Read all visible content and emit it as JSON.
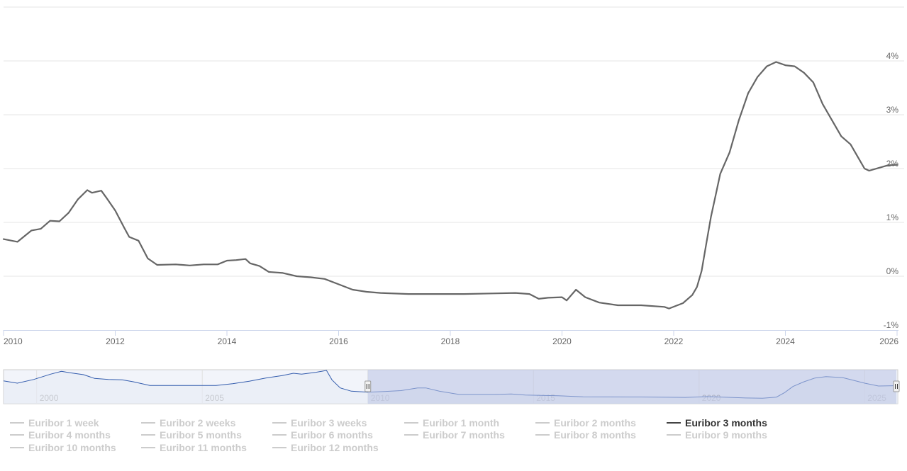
{
  "chart_data": {
    "type": "line",
    "series": [
      {
        "name": "Euribor 3 months",
        "color": "#666666",
        "points": [
          [
            "2010-01",
            0.69
          ],
          [
            "2010-04",
            0.64
          ],
          [
            "2010-07",
            0.85
          ],
          [
            "2010-09",
            0.88
          ],
          [
            "2010-11",
            1.03
          ],
          [
            "2011-01",
            1.02
          ],
          [
            "2011-03",
            1.18
          ],
          [
            "2011-05",
            1.43
          ],
          [
            "2011-07",
            1.6
          ],
          [
            "2011-08",
            1.55
          ],
          [
            "2011-10",
            1.59
          ],
          [
            "2011-11",
            1.47
          ],
          [
            "2012-01",
            1.22
          ],
          [
            "2012-03",
            0.89
          ],
          [
            "2012-04",
            0.73
          ],
          [
            "2012-06",
            0.66
          ],
          [
            "2012-08",
            0.33
          ],
          [
            "2012-10",
            0.21
          ],
          [
            "2013-02",
            0.22
          ],
          [
            "2013-05",
            0.2
          ],
          [
            "2013-08",
            0.22
          ],
          [
            "2013-11",
            0.22
          ],
          [
            "2014-01",
            0.29
          ],
          [
            "2014-03",
            0.3
          ],
          [
            "2014-05",
            0.32
          ],
          [
            "2014-06",
            0.24
          ],
          [
            "2014-08",
            0.19
          ],
          [
            "2014-10",
            0.08
          ],
          [
            "2015-01",
            0.06
          ],
          [
            "2015-04",
            0.0
          ],
          [
            "2015-07",
            -0.02
          ],
          [
            "2015-10",
            -0.05
          ],
          [
            "2016-01",
            -0.15
          ],
          [
            "2016-04",
            -0.25
          ],
          [
            "2016-07",
            -0.29
          ],
          [
            "2016-10",
            -0.31
          ],
          [
            "2017-04",
            -0.33
          ],
          [
            "2017-10",
            -0.33
          ],
          [
            "2018-04",
            -0.33
          ],
          [
            "2018-10",
            -0.32
          ],
          [
            "2019-03",
            -0.31
          ],
          [
            "2019-06",
            -0.33
          ],
          [
            "2019-08",
            -0.42
          ],
          [
            "2019-10",
            -0.4
          ],
          [
            "2020-01",
            -0.39
          ],
          [
            "2020-02",
            -0.45
          ],
          [
            "2020-04",
            -0.25
          ],
          [
            "2020-06",
            -0.39
          ],
          [
            "2020-09",
            -0.49
          ],
          [
            "2021-01",
            -0.54
          ],
          [
            "2021-06",
            -0.54
          ],
          [
            "2021-11",
            -0.57
          ],
          [
            "2021-12",
            -0.6
          ],
          [
            "2022-03",
            -0.5
          ],
          [
            "2022-05",
            -0.35
          ],
          [
            "2022-06",
            -0.2
          ],
          [
            "2022-07",
            0.1
          ],
          [
            "2022-08",
            0.6
          ],
          [
            "2022-09",
            1.1
          ],
          [
            "2022-10",
            1.5
          ],
          [
            "2022-11",
            1.9
          ],
          [
            "2023-01",
            2.3
          ],
          [
            "2023-03",
            2.9
          ],
          [
            "2023-05",
            3.4
          ],
          [
            "2023-07",
            3.7
          ],
          [
            "2023-09",
            3.9
          ],
          [
            "2023-11",
            3.98
          ],
          [
            "2024-01",
            3.92
          ],
          [
            "2024-03",
            3.9
          ],
          [
            "2024-05",
            3.78
          ],
          [
            "2024-07",
            3.6
          ],
          [
            "2024-09",
            3.2
          ],
          [
            "2024-11",
            2.9
          ],
          [
            "2025-01",
            2.6
          ],
          [
            "2025-03",
            2.45
          ],
          [
            "2025-05",
            2.15
          ],
          [
            "2025-06",
            2.0
          ],
          [
            "2025-07",
            1.96
          ],
          [
            "2025-09",
            2.01
          ],
          [
            "2025-11",
            2.06
          ],
          [
            "2026-01",
            2.07
          ]
        ]
      }
    ],
    "y_ticks": [
      "4%",
      "3%",
      "2%",
      "1%",
      "0%",
      "-1%"
    ],
    "y_tick_values": [
      4,
      3,
      2,
      1,
      0,
      -1
    ],
    "ylim": [
      -1,
      5
    ],
    "x_ticks": [
      "2010",
      "2012",
      "2014",
      "2016",
      "2018",
      "2020",
      "2022",
      "2024",
      "2026"
    ],
    "xlim": [
      "2010-01",
      "2026-01"
    ],
    "grid": true,
    "navigator": {
      "ticks": [
        "2000",
        "2005",
        "2010",
        "2015",
        "2020",
        "2025"
      ],
      "range": [
        "1999-01",
        "2026-01"
      ],
      "selected_range": [
        "2010-01",
        "2026-01"
      ],
      "ylim": [
        -1,
        5
      ],
      "points": [
        [
          "1999-01",
          3.1
        ],
        [
          "1999-06",
          2.6
        ],
        [
          "1999-12",
          3.4
        ],
        [
          "2000-06",
          4.5
        ],
        [
          "2000-10",
          5.1
        ],
        [
          "2001-01",
          4.8
        ],
        [
          "2001-06",
          4.4
        ],
        [
          "2001-10",
          3.6
        ],
        [
          "2002-03",
          3.4
        ],
        [
          "2002-08",
          3.3
        ],
        [
          "2002-12",
          2.9
        ],
        [
          "2003-06",
          2.1
        ],
        [
          "2004-06",
          2.1
        ],
        [
          "2005-06",
          2.1
        ],
        [
          "2005-12",
          2.5
        ],
        [
          "2006-06",
          3.0
        ],
        [
          "2006-12",
          3.7
        ],
        [
          "2007-06",
          4.2
        ],
        [
          "2007-10",
          4.7
        ],
        [
          "2008-01",
          4.5
        ],
        [
          "2008-06",
          4.9
        ],
        [
          "2008-10",
          5.3
        ],
        [
          "2008-12",
          3.3
        ],
        [
          "2009-03",
          1.6
        ],
        [
          "2009-07",
          0.9
        ],
        [
          "2010-01",
          0.69
        ],
        [
          "2010-07",
          0.85
        ],
        [
          "2011-01",
          1.02
        ],
        [
          "2011-07",
          1.6
        ],
        [
          "2011-10",
          1.59
        ],
        [
          "2012-03",
          0.89
        ],
        [
          "2012-10",
          0.21
        ],
        [
          "2013-11",
          0.22
        ],
        [
          "2014-05",
          0.32
        ],
        [
          "2014-10",
          0.08
        ],
        [
          "2015-10",
          -0.05
        ],
        [
          "2016-07",
          -0.29
        ],
        [
          "2018-04",
          -0.33
        ],
        [
          "2019-08",
          -0.42
        ],
        [
          "2020-04",
          -0.25
        ],
        [
          "2021-06",
          -0.54
        ],
        [
          "2021-12",
          -0.6
        ],
        [
          "2022-05",
          -0.35
        ],
        [
          "2022-08",
          0.6
        ],
        [
          "2022-11",
          1.9
        ],
        [
          "2023-03",
          2.9
        ],
        [
          "2023-07",
          3.7
        ],
        [
          "2023-11",
          3.98
        ],
        [
          "2024-05",
          3.78
        ],
        [
          "2024-09",
          3.2
        ],
        [
          "2025-01",
          2.6
        ],
        [
          "2025-06",
          2.0
        ],
        [
          "2026-01",
          2.07
        ]
      ]
    }
  },
  "legend": {
    "items": [
      {
        "label": "Euribor 1 week",
        "active": false
      },
      {
        "label": "Euribor 2 weeks",
        "active": false
      },
      {
        "label": "Euribor 3 weeks",
        "active": false
      },
      {
        "label": "Euribor 1 month",
        "active": false
      },
      {
        "label": "Euribor 2 months",
        "active": false
      },
      {
        "label": "Euribor 3 months",
        "active": true
      },
      {
        "label": "Euribor 4 months",
        "active": false
      },
      {
        "label": "Euribor 5 months",
        "active": false
      },
      {
        "label": "Euribor 6 months",
        "active": false
      },
      {
        "label": "Euribor 7 months",
        "active": false
      },
      {
        "label": "Euribor 8 months",
        "active": false
      },
      {
        "label": "Euribor 9 months",
        "active": false
      },
      {
        "label": "Euribor 10 months",
        "active": false
      },
      {
        "label": "Euribor 11 months",
        "active": false
      },
      {
        "label": "Euribor 12 months",
        "active": false
      }
    ]
  },
  "colors": {
    "line": "#666666",
    "grid": "#e6e6e6",
    "axis_text": "#666666",
    "navigator_line": "#335cad",
    "navigator_mask": "#b9c2e4",
    "legend_active": "#333333",
    "legend_inactive": "#cccccc"
  }
}
